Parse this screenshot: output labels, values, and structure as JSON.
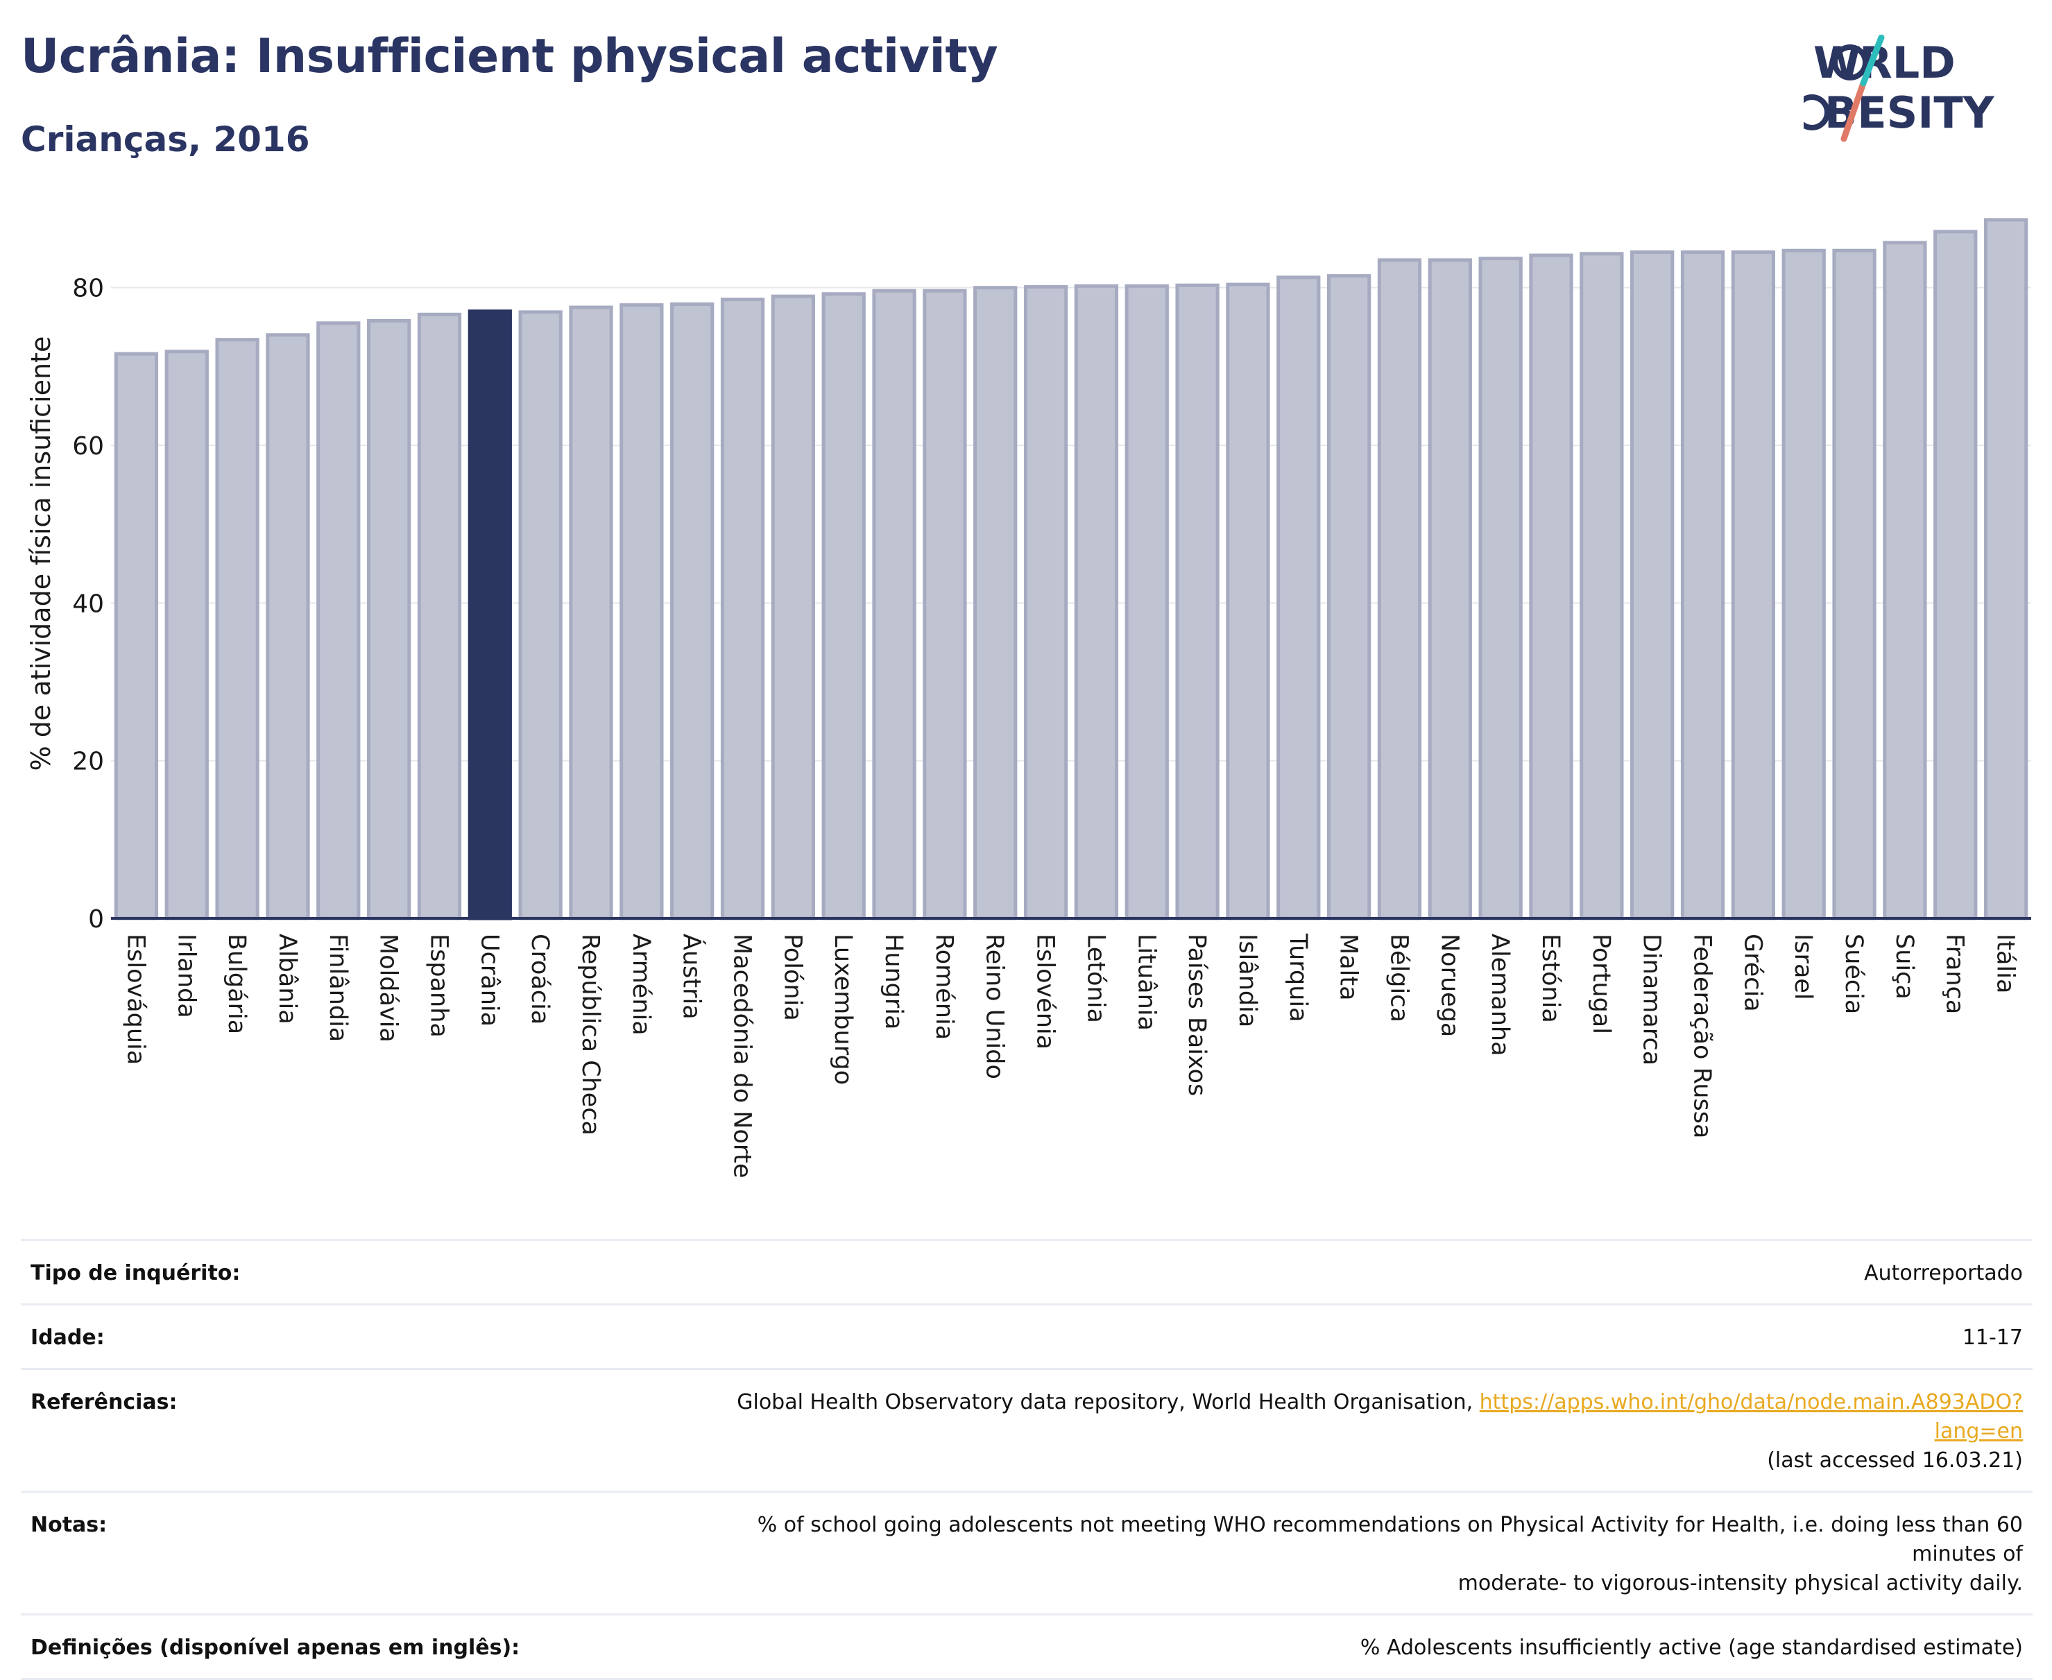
{
  "header": {
    "title": "Ucrânia: Insufficient physical activity",
    "subtitle": "Crianças, 2016"
  },
  "logo": {
    "line1": "WORLD",
    "line2": "OBESITY"
  },
  "colors": {
    "highlight_bar": "#2a3560",
    "bar_fill": "#c0c3d2",
    "bar_stroke": "#a7abc1",
    "axis": "#2a3560",
    "grid": "#e6e8ee",
    "link": "#e8a920"
  },
  "chart_data": {
    "type": "bar",
    "title": "Ucrânia: Insufficient physical activity",
    "subtitle": "Crianças, 2016",
    "ylabel": "% de atividade física insuficiente",
    "xlabel": "",
    "ylim": [
      0,
      90
    ],
    "yticks": [
      0,
      20,
      40,
      60,
      80
    ],
    "grid": true,
    "highlight": "Ucrânia",
    "categories": [
      "Eslováquia",
      "Irlanda",
      "Bulgária",
      "Albânia",
      "Finlândia",
      "Moldávia",
      "Espanha",
      "Ucrânia",
      "Croácia",
      "República Checa",
      "Arménia",
      "Áustria",
      "Macedónia do Norte",
      "Polónia",
      "Luxemburgo",
      "Hungria",
      "Roménia",
      "Reino Unido",
      "Eslovénia",
      "Letónia",
      "Lituânia",
      "Países Baixos",
      "Islândia",
      "Turquia",
      "Malta",
      "Bélgica",
      "Noruega",
      "Alemanha",
      "Estónia",
      "Portugal",
      "Dinamarca",
      "Federação Russa",
      "Grécia",
      "Israel",
      "Suécia",
      "Suiça",
      "França",
      "Itália"
    ],
    "values": [
      71.6,
      71.9,
      73.4,
      74.0,
      75.5,
      75.8,
      76.6,
      77.0,
      76.9,
      77.5,
      77.8,
      77.9,
      78.5,
      78.9,
      79.2,
      79.6,
      79.6,
      80.0,
      80.1,
      80.2,
      80.2,
      80.3,
      80.4,
      81.3,
      81.5,
      83.5,
      83.5,
      83.7,
      84.1,
      84.3,
      84.5,
      84.5,
      84.5,
      84.7,
      84.7,
      85.7,
      87.1,
      88.6
    ]
  },
  "info": {
    "survey_type": {
      "label": "Tipo de inquérito:",
      "value": "Autorreportado"
    },
    "age": {
      "label": "Idade:",
      "value": "11-17"
    },
    "references": {
      "label": "Referências:",
      "text": "Global Health Observatory data repository, World Health Organisation, ",
      "link": "https://apps.who.int/gho/data/node.main.A893ADO?lang=en",
      "accessed": "(last accessed 16.03.21)"
    },
    "notes": {
      "label": "Notas:",
      "line1": "% of school going adolescents not meeting WHO recommendations on Physical Activity for Health, i.e. doing less than 60 minutes of",
      "line2": "moderate- to vigorous-intensity physical activity daily."
    },
    "definitions": {
      "label": "Definições (disponível apenas em inglês):",
      "value": "% Adolescents insufficiently active (age standardised estimate)"
    }
  }
}
